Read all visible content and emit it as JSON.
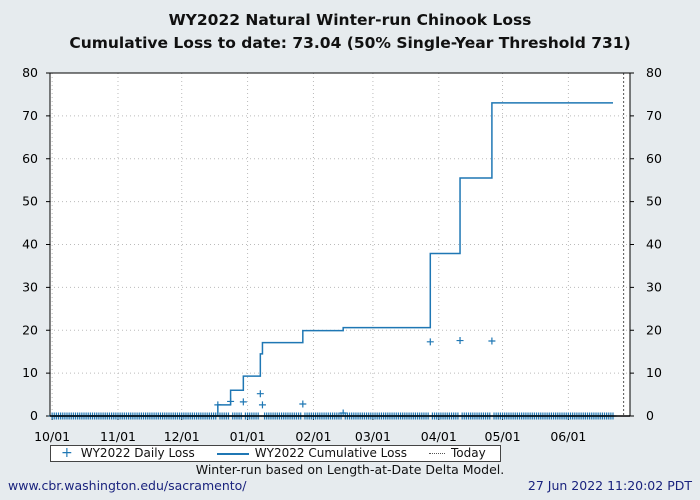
{
  "chart_data": {
    "type": "line",
    "title": "WY2022 Natural Winter-run Chinook Loss",
    "subtitle": "Cumulative Loss to date: 73.04 (50% Single-Year Threshold 731)",
    "xlabel": "",
    "ylabel": "",
    "ylim": [
      0,
      80
    ],
    "xlim": [
      "2021-09-30",
      "2022-06-30"
    ],
    "y_ticks": [
      0,
      10,
      20,
      30,
      40,
      50,
      60,
      70,
      80
    ],
    "x_ticks": [
      {
        "date": "2021-10-01",
        "label": "10/01"
      },
      {
        "date": "2021-11-01",
        "label": "11/01"
      },
      {
        "date": "2021-12-01",
        "label": "12/01"
      },
      {
        "date": "2022-01-01",
        "label": "01/01"
      },
      {
        "date": "2022-02-01",
        "label": "02/01"
      },
      {
        "date": "2022-03-01",
        "label": "03/01"
      },
      {
        "date": "2022-04-01",
        "label": "04/01"
      },
      {
        "date": "2022-05-01",
        "label": "05/01"
      },
      {
        "date": "2022-06-01",
        "label": "06/01"
      }
    ],
    "grid": true,
    "legend_position": "bottom",
    "data_range": [
      "2021-10-01",
      "2022-06-22"
    ],
    "today": "2022-06-27",
    "series": [
      {
        "name": "WY2022 Daily Loss",
        "kind": "scatter",
        "marker": "+",
        "color": "#1f77b4",
        "nonzero_points": [
          {
            "date": "2021-12-18",
            "value": 2.6
          },
          {
            "date": "2021-12-24",
            "value": 3.4
          },
          {
            "date": "2021-12-30",
            "value": 3.3
          },
          {
            "date": "2022-01-07",
            "value": 5.2
          },
          {
            "date": "2022-01-08",
            "value": 2.6
          },
          {
            "date": "2022-01-27",
            "value": 2.8
          },
          {
            "date": "2022-02-15",
            "value": 0.7
          },
          {
            "date": "2022-03-28",
            "value": 17.3
          },
          {
            "date": "2022-04-11",
            "value": 17.6
          },
          {
            "date": "2022-04-26",
            "value": 17.5
          }
        ],
        "other_days_value": 0
      },
      {
        "name": "WY2022 Cumulative Loss",
        "kind": "step-line",
        "color": "#1f77b4",
        "points": [
          {
            "date": "2021-10-01",
            "value": 0
          },
          {
            "date": "2021-12-18",
            "value": 2.6
          },
          {
            "date": "2021-12-24",
            "value": 6.0
          },
          {
            "date": "2021-12-30",
            "value": 9.3
          },
          {
            "date": "2022-01-07",
            "value": 14.5
          },
          {
            "date": "2022-01-08",
            "value": 17.1
          },
          {
            "date": "2022-01-27",
            "value": 19.9
          },
          {
            "date": "2022-02-15",
            "value": 20.6
          },
          {
            "date": "2022-03-28",
            "value": 37.9
          },
          {
            "date": "2022-04-11",
            "value": 55.5
          },
          {
            "date": "2022-04-26",
            "value": 73.04
          },
          {
            "date": "2022-06-22",
            "value": 73.04
          }
        ]
      },
      {
        "name": "Today",
        "kind": "vline-dotted",
        "color": "#555555"
      }
    ]
  },
  "footer": {
    "note": "Winter-run based on Length-at-Date Delta Model.",
    "url": "www.cbr.washington.edu/sacramento/",
    "timestamp": "27 Jun 2022 11:20:02 PDT"
  }
}
